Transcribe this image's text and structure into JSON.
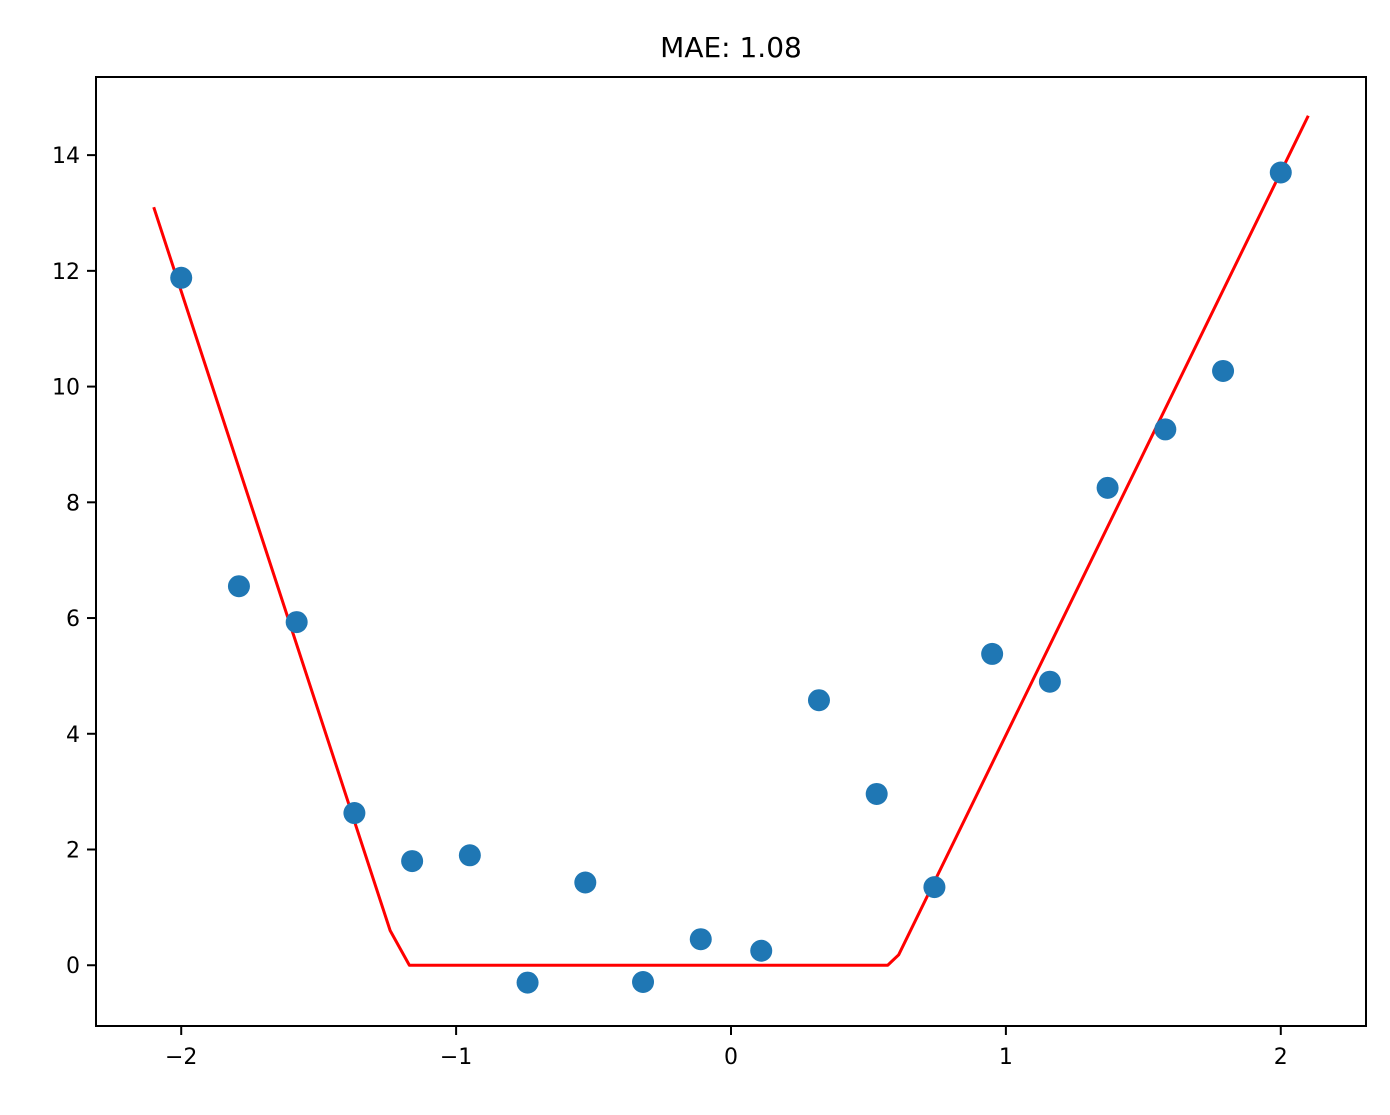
{
  "chart_data": {
    "type": "scatter",
    "title": "MAE: 1.08",
    "xlabel": "",
    "ylabel": "",
    "xlim": [
      -2.31,
      2.31
    ],
    "ylim": [
      -1.05,
      15.35
    ],
    "xticks": [
      -2,
      -1,
      0,
      1,
      2
    ],
    "xtick_labels": [
      "−2",
      "−1",
      "0",
      "1",
      "2"
    ],
    "yticks": [
      0,
      2,
      4,
      6,
      8,
      10,
      12,
      14
    ],
    "ytick_labels": [
      "0",
      "2",
      "4",
      "6",
      "8",
      "10",
      "12",
      "14"
    ],
    "grid": false,
    "colors": {
      "points": "#1f77b4",
      "line": "#ff0000"
    },
    "series": [
      {
        "type": "scatter",
        "x": [
          -2.0,
          -1.79,
          -1.58,
          -1.37,
          -1.16,
          -0.95,
          -0.74,
          -0.53,
          -0.32,
          -0.11,
          0.11,
          0.32,
          0.53,
          0.74,
          0.95,
          1.16,
          1.37,
          1.58,
          1.79,
          2.0
        ],
        "y": [
          11.88,
          6.55,
          5.93,
          2.63,
          1.8,
          1.9,
          -0.3,
          1.43,
          -0.29,
          0.45,
          0.25,
          4.58,
          2.96,
          1.35,
          5.38,
          4.9,
          8.25,
          9.26,
          10.27,
          13.7
        ]
      },
      {
        "type": "line",
        "x": [
          -2.1,
          -1.24,
          -1.17,
          0.57,
          0.61,
          2.1
        ],
        "y": [
          13.1,
          0.6,
          0.0,
          0.0,
          0.18,
          14.68
        ]
      }
    ]
  }
}
